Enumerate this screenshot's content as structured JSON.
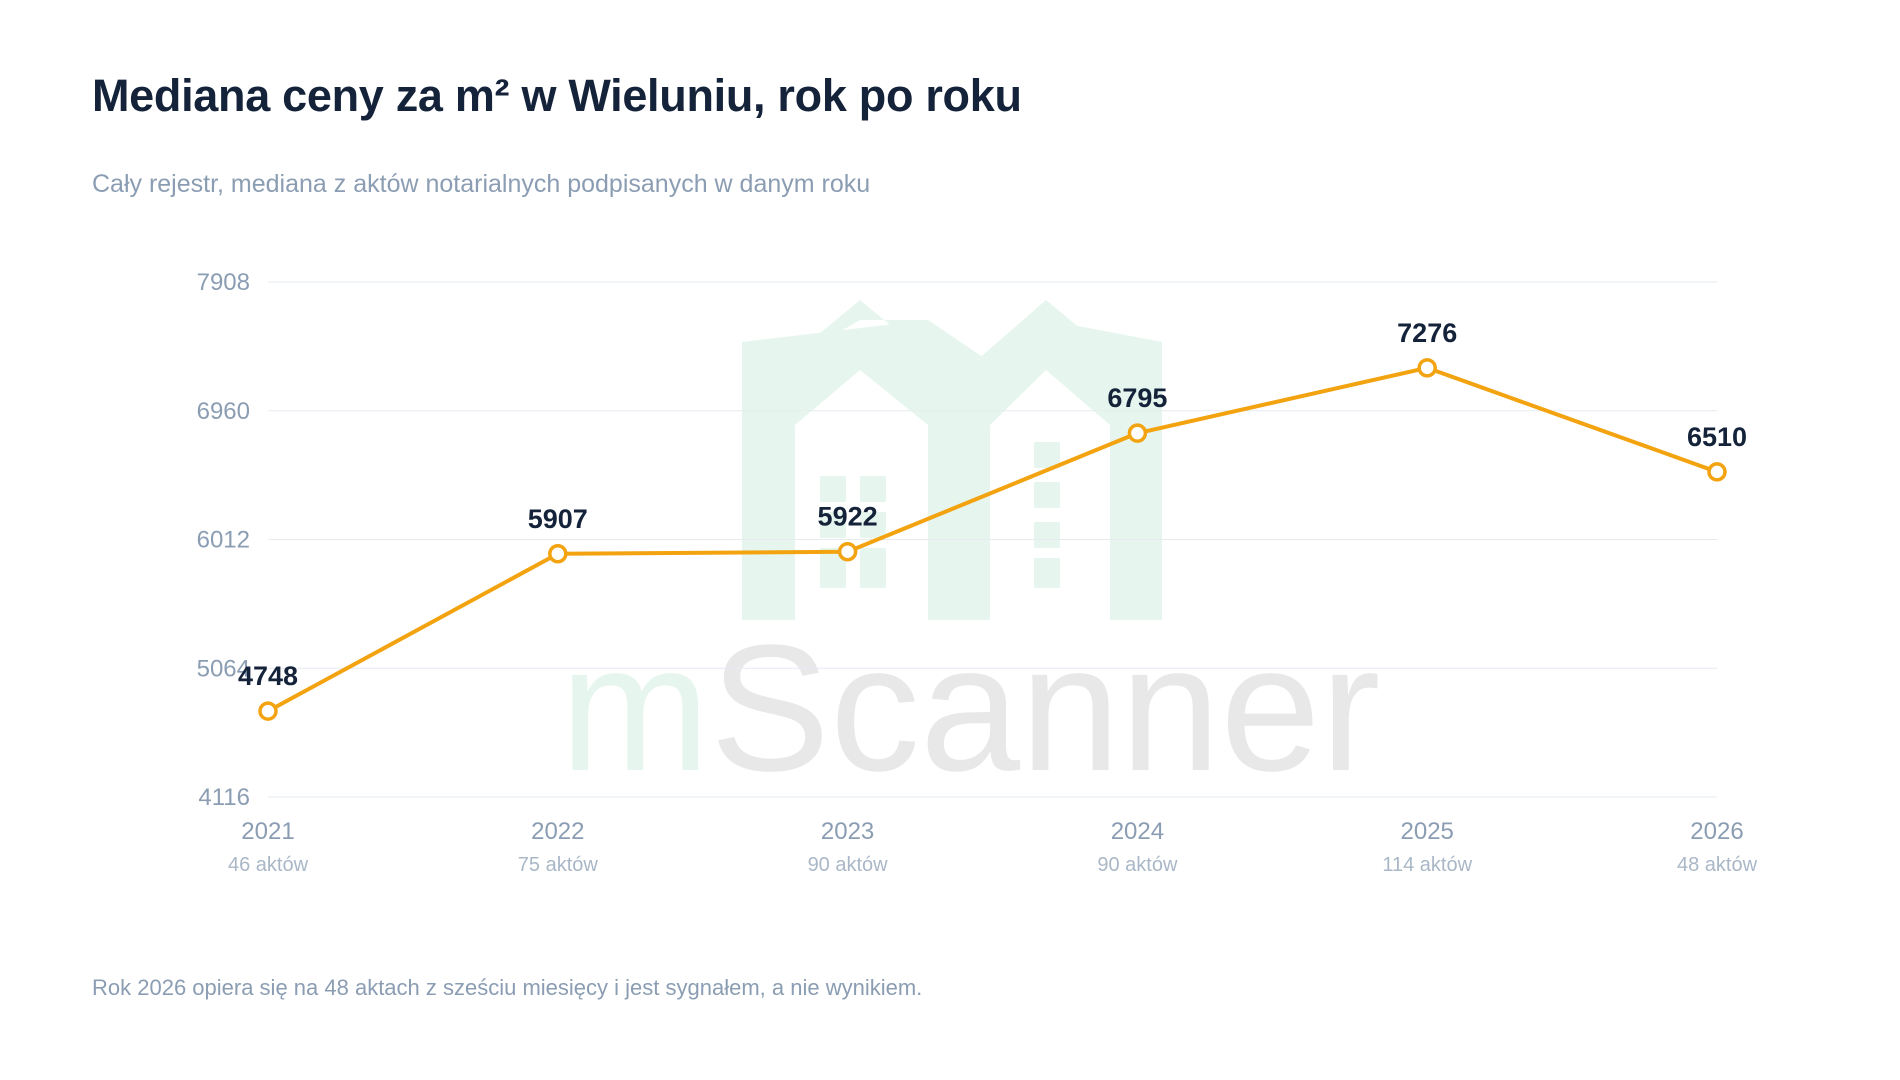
{
  "title": "Mediana ceny za m² w Wieluniu, rok po roku",
  "subtitle": "Cały rejestr, mediana z aktów notarialnych podpisanych w danym roku",
  "footnote": "Rok 2026 opiera się na 48 aktach z sześciu miesięcy i jest sygnałem, a nie wynikiem.",
  "watermark": {
    "part1": "m",
    "part2": "Scanner"
  },
  "colors": {
    "line": "#f2a30f",
    "grid": "#e6ebf0",
    "watermark_green": "#e6f6ee",
    "watermark_gray": "#e8e8e8"
  },
  "chart_data": {
    "type": "line",
    "x": [
      "2021",
      "2022",
      "2023",
      "2024",
      "2025",
      "2026"
    ],
    "x_sublabels": [
      "46 aktów",
      "75 aktów",
      "90 aktów",
      "90 aktów",
      "114 aktów",
      "48 aktów"
    ],
    "series": [
      {
        "values": [
          4748,
          5907,
          5922,
          6795,
          7276,
          6510
        ]
      }
    ],
    "data_labels": [
      "4748",
      "5907",
      "5922",
      "6795",
      "7276",
      "6510"
    ],
    "yticks": [
      4116,
      5064,
      6012,
      6960,
      7908
    ],
    "ylim": [
      4116,
      7908
    ],
    "grid": true
  }
}
